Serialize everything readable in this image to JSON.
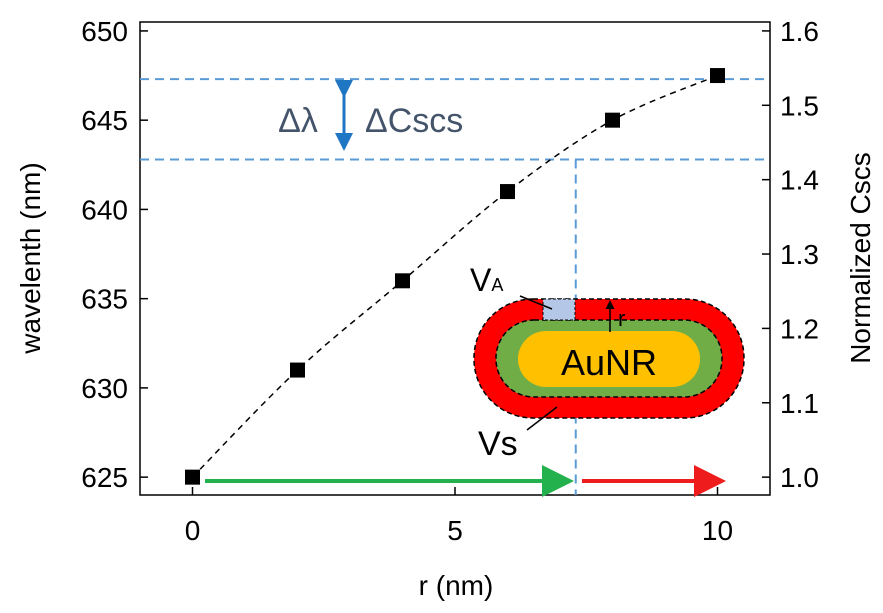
{
  "chart_data": {
    "type": "scatter",
    "x_label": "r (nm)",
    "y_label": "wavelenth (nm)",
    "y2_label": "Normalized Cscs",
    "x": [
      0,
      2,
      4,
      6,
      8,
      10
    ],
    "series": [
      {
        "color": "#000000",
        "values": [
          625,
          631,
          636,
          641,
          645,
          647.5
        ]
      }
    ],
    "xlim": [
      -1,
      11
    ],
    "xticks": [
      0,
      5,
      10
    ],
    "ylim": [
      624,
      650.5
    ],
    "yticks": [
      625,
      630,
      635,
      640,
      645,
      650
    ],
    "y2lim": [
      0.976,
      1.612
    ],
    "y2ticks": [
      {
        "value": 1,
        "label": "1.0"
      },
      1.1,
      1.2,
      1.3,
      1.4,
      1.5,
      1.6
    ],
    "hlines": [
      647.3,
      642.8
    ],
    "vline": 7.3,
    "annotations": {
      "delta_lambda": "Δλ",
      "delta_cscs": "ΔCscs",
      "va_main": "V",
      "va_sub": "A",
      "r": "r",
      "aunr": "AuNR",
      "vs": "Vs"
    }
  }
}
